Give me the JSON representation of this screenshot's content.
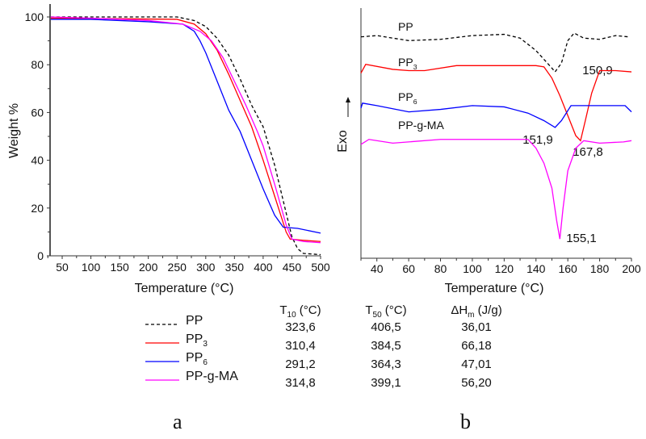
{
  "chart_data": [
    {
      "type": "line",
      "panel_label": "a",
      "xlabel": "Temperature (°C)",
      "ylabel": "Weight %",
      "xlim": [
        30,
        500
      ],
      "ylim": [
        0,
        100
      ],
      "xticks": [
        50,
        100,
        150,
        200,
        250,
        300,
        350,
        400,
        450,
        500
      ],
      "yticks": [
        0,
        20,
        40,
        60,
        80,
        100
      ],
      "grid": false,
      "series": [
        {
          "name": "PP",
          "color": "#000000",
          "dash": true,
          "points": [
            [
              30,
              100
            ],
            [
              250,
              100
            ],
            [
              280,
              98.5
            ],
            [
              300,
              96
            ],
            [
              320,
              91
            ],
            [
              340,
              84
            ],
            [
              360,
              74
            ],
            [
              380,
              63
            ],
            [
              400,
              54
            ],
            [
              420,
              38
            ],
            [
              440,
              18
            ],
            [
              450,
              8
            ],
            [
              460,
              3
            ],
            [
              470,
              1
            ],
            [
              500,
              0.5
            ]
          ]
        },
        {
          "name": "PP3",
          "color": "#ff0000",
          "dash": false,
          "points": [
            [
              30,
              99.5
            ],
            [
              250,
              99
            ],
            [
              280,
              97
            ],
            [
              300,
              93
            ],
            [
              320,
              86
            ],
            [
              340,
              76
            ],
            [
              360,
              65
            ],
            [
              380,
              54
            ],
            [
              390,
              47
            ],
            [
              400,
              40
            ],
            [
              420,
              25
            ],
            [
              440,
              10
            ],
            [
              447,
              7
            ],
            [
              470,
              6.5
            ],
            [
              500,
              6
            ]
          ]
        },
        {
          "name": "PP6",
          "color": "#0000ff",
          "dash": false,
          "points": [
            [
              30,
              99
            ],
            [
              100,
              99
            ],
            [
              200,
              98
            ],
            [
              260,
              97
            ],
            [
              280,
              94
            ],
            [
              290,
              90
            ],
            [
              300,
              85
            ],
            [
              320,
              73
            ],
            [
              340,
              61
            ],
            [
              360,
              52
            ],
            [
              380,
              40
            ],
            [
              400,
              28
            ],
            [
              420,
              17
            ],
            [
              435,
              12
            ],
            [
              460,
              11.5
            ],
            [
              500,
              9.5
            ]
          ]
        },
        {
          "name": "PP-g-MA",
          "color": "#ff00ff",
          "dash": false,
          "points": [
            [
              30,
              100
            ],
            [
              100,
              99.5
            ],
            [
              200,
              98.5
            ],
            [
              260,
              97
            ],
            [
              290,
              94
            ],
            [
              310,
              90
            ],
            [
              330,
              83
            ],
            [
              350,
              73
            ],
            [
              370,
              63
            ],
            [
              390,
              52
            ],
            [
              400,
              46
            ],
            [
              420,
              30
            ],
            [
              440,
              13
            ],
            [
              450,
              7
            ],
            [
              470,
              6
            ],
            [
              500,
              5.5
            ]
          ]
        }
      ]
    },
    {
      "type": "line",
      "panel_label": "b",
      "xlabel": "Temperature (°C)",
      "ylabel": "Exo",
      "xlim": [
        30,
        200
      ],
      "ylim": [
        0,
        100
      ],
      "xticks": [
        40,
        60,
        80,
        100,
        120,
        140,
        160,
        180,
        200
      ],
      "yticks": [],
      "grid": false,
      "series": [
        {
          "name": "PP",
          "sub": "",
          "color": "#000000",
          "dash": true,
          "peak_label": "150,9",
          "points": [
            [
              30,
              88.5
            ],
            [
              40,
              89
            ],
            [
              60,
              87
            ],
            [
              80,
              87.5
            ],
            [
              100,
              89
            ],
            [
              120,
              89.5
            ],
            [
              130,
              88
            ],
            [
              140,
              83
            ],
            [
              150,
              76
            ],
            [
              152,
              74.5
            ],
            [
              156,
              78
            ],
            [
              160,
              87
            ],
            [
              164,
              90
            ],
            [
              170,
              88
            ],
            [
              180,
              87.5
            ],
            [
              190,
              89
            ],
            [
              198,
              88.5
            ]
          ]
        },
        {
          "name": "PP",
          "sub": "3",
          "color": "#ff0000",
          "dash": false,
          "peak_label": "167,8",
          "points": [
            [
              30,
              74
            ],
            [
              33,
              77.5
            ],
            [
              50,
              75.5
            ],
            [
              60,
              75
            ],
            [
              70,
              75
            ],
            [
              90,
              77
            ],
            [
              120,
              77
            ],
            [
              140,
              77
            ],
            [
              145,
              76.5
            ],
            [
              150,
              72
            ],
            [
              155,
              65
            ],
            [
              160,
              57
            ],
            [
              165,
              49
            ],
            [
              168,
              47
            ],
            [
              171,
              55
            ],
            [
              175,
              66
            ],
            [
              180,
              75
            ],
            [
              190,
              75
            ],
            [
              200,
              74.5
            ]
          ]
        },
        {
          "name": "PP",
          "sub": "6",
          "color": "#0000ff",
          "dash": false,
          "peak_label": "151,9",
          "points": [
            [
              30,
              60
            ],
            [
              31,
              62
            ],
            [
              40,
              61
            ],
            [
              60,
              58.5
            ],
            [
              80,
              59.5
            ],
            [
              100,
              61
            ],
            [
              120,
              60.5
            ],
            [
              135,
              58
            ],
            [
              145,
              55
            ],
            [
              152,
              52.3
            ],
            [
              156,
              55
            ],
            [
              162,
              61
            ],
            [
              170,
              61
            ],
            [
              196,
              61
            ],
            [
              200,
              58.5
            ]
          ]
        },
        {
          "name": "PP-g-MA",
          "sub": "",
          "color": "#ff00ff",
          "dash": false,
          "peak_label": "155,1",
          "points": [
            [
              30,
              45.5
            ],
            [
              35,
              47.5
            ],
            [
              50,
              46
            ],
            [
              80,
              47.5
            ],
            [
              135,
              47.5
            ],
            [
              140,
              44
            ],
            [
              145,
              38
            ],
            [
              150,
              28
            ],
            [
              153,
              15
            ],
            [
              155,
              7.7
            ],
            [
              157,
              20
            ],
            [
              160,
              35
            ],
            [
              165,
              44
            ],
            [
              170,
              47
            ],
            [
              180,
              46
            ],
            [
              195,
              46.5
            ],
            [
              200,
              47
            ]
          ]
        }
      ]
    }
  ],
  "table": {
    "headers": [
      {
        "main": "T",
        "sub": "10",
        "unit": "(°C)"
      },
      {
        "main": "T",
        "sub": "50",
        "unit": "(°C)"
      },
      {
        "main": "ΔH",
        "sub": "m",
        "unit": "(J/g)"
      }
    ],
    "rows": [
      {
        "name": "PP",
        "sub": "",
        "color": "#000000",
        "dash": true,
        "values": [
          "323,6",
          "406,5",
          "36,01"
        ]
      },
      {
        "name": "PP",
        "sub": "3",
        "color": "#ff0000",
        "dash": false,
        "values": [
          "310,4",
          "384,5",
          "66,18"
        ]
      },
      {
        "name": "PP",
        "sub": "6",
        "color": "#0000ff",
        "dash": false,
        "values": [
          "291,2",
          "364,3",
          "47,01"
        ]
      },
      {
        "name": "PP-g-MA",
        "sub": "",
        "color": "#ff00ff",
        "dash": false,
        "values": [
          "314,8",
          "399,1",
          "56,20"
        ]
      }
    ]
  }
}
